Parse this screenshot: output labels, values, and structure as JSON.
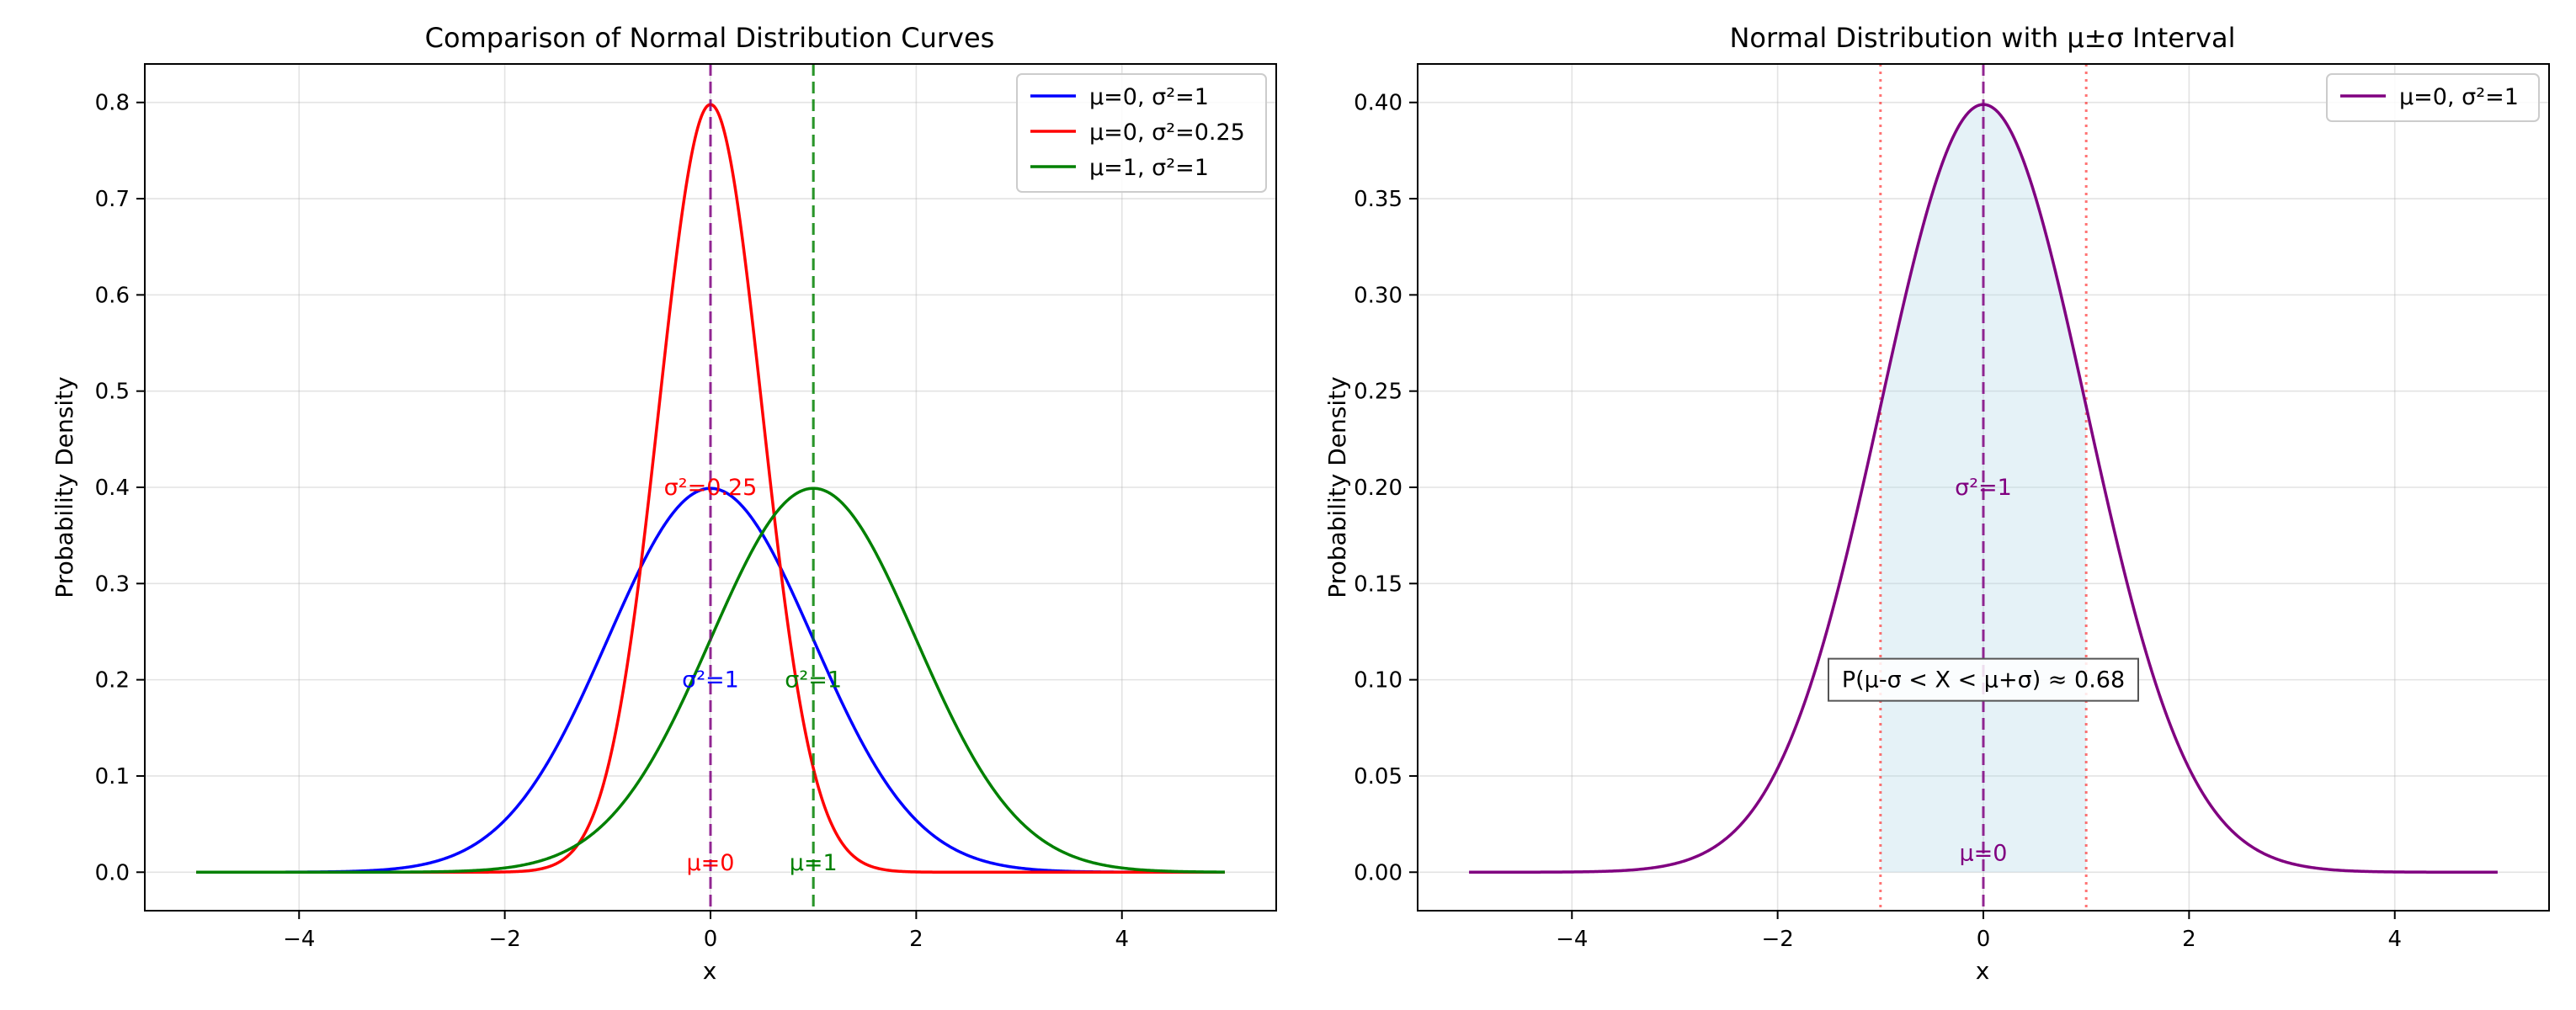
{
  "chart_data": [
    {
      "type": "line",
      "title": "Comparison of Normal Distribution Curves",
      "xlabel": "x",
      "ylabel": "Probability Density",
      "xlim": [
        -5.5,
        5.5
      ],
      "ylim": [
        -0.04,
        0.84
      ],
      "xticks": [
        -4,
        -2,
        0,
        2,
        4
      ],
      "xtick_labels": [
        "−4",
        "−2",
        "0",
        "2",
        "4"
      ],
      "yticks": [
        0.0,
        0.1,
        0.2,
        0.3,
        0.4,
        0.5,
        0.6,
        0.7,
        0.8
      ],
      "ytick_labels": [
        "0.0",
        "0.1",
        "0.2",
        "0.3",
        "0.4",
        "0.5",
        "0.6",
        "0.7",
        "0.8"
      ],
      "grid": true,
      "legend_position": "top-right",
      "x_range": [
        -5,
        5
      ],
      "series": [
        {
          "name": "μ=0, σ²=1",
          "mu": 0,
          "variance": 1,
          "color": "#0000ff"
        },
        {
          "name": "μ=0, σ²=0.25",
          "mu": 0,
          "variance": 0.25,
          "color": "#ff0000"
        },
        {
          "name": "μ=1, σ²=1",
          "mu": 1,
          "variance": 1,
          "color": "#008000"
        }
      ],
      "mean_lines": [
        {
          "x": 0,
          "color": "#800080"
        },
        {
          "x": 1,
          "color": "#008000"
        }
      ],
      "annotations": [
        {
          "text": "σ²=0.25",
          "x": 0,
          "y": 0.4,
          "color": "#ff0000"
        },
        {
          "text": "σ²=1",
          "x": 0,
          "y": 0.2,
          "color": "#0000ff"
        },
        {
          "text": "σ²=1",
          "x": 1,
          "y": 0.2,
          "color": "#008000"
        },
        {
          "text": "μ=0",
          "x": 0,
          "y": 0.01,
          "color": "#ff0000"
        },
        {
          "text": "μ=1",
          "x": 1,
          "y": 0.01,
          "color": "#008000"
        }
      ]
    },
    {
      "type": "area",
      "title": "Normal Distribution with μ±σ Interval",
      "xlabel": "x",
      "ylabel": "Probability Density",
      "xlim": [
        -5.5,
        5.5
      ],
      "ylim": [
        -0.02,
        0.42
      ],
      "xticks": [
        -4,
        -2,
        0,
        2,
        4
      ],
      "xtick_labels": [
        "−4",
        "−2",
        "0",
        "2",
        "4"
      ],
      "yticks": [
        0.0,
        0.05,
        0.1,
        0.15,
        0.2,
        0.25,
        0.3,
        0.35,
        0.4
      ],
      "ytick_labels": [
        "0.00",
        "0.05",
        "0.10",
        "0.15",
        "0.20",
        "0.25",
        "0.30",
        "0.35",
        "0.40"
      ],
      "grid": true,
      "legend_position": "top-right",
      "x_range": [
        -5,
        5
      ],
      "series": [
        {
          "name": "μ=0, σ²=1",
          "mu": 0,
          "variance": 1,
          "color": "#800080"
        }
      ],
      "shaded_interval": [
        -1,
        1
      ],
      "shade_color": "#add8e6",
      "mean_lines": [
        {
          "x": 0,
          "color": "#800080"
        }
      ],
      "sigma_lines": [
        {
          "x": -1,
          "color": "#ff0000"
        },
        {
          "x": 1,
          "color": "#ff0000"
        }
      ],
      "annotations": [
        {
          "text": "σ²=1",
          "x": 0,
          "y": 0.2,
          "color": "#800080"
        },
        {
          "text": "μ=0",
          "x": 0,
          "y": 0.01,
          "color": "#800080"
        }
      ],
      "box_annotation": {
        "text": "P(μ-σ < X < μ+σ) ≈ 0.68",
        "x": 0,
        "y": 0.1
      }
    }
  ]
}
